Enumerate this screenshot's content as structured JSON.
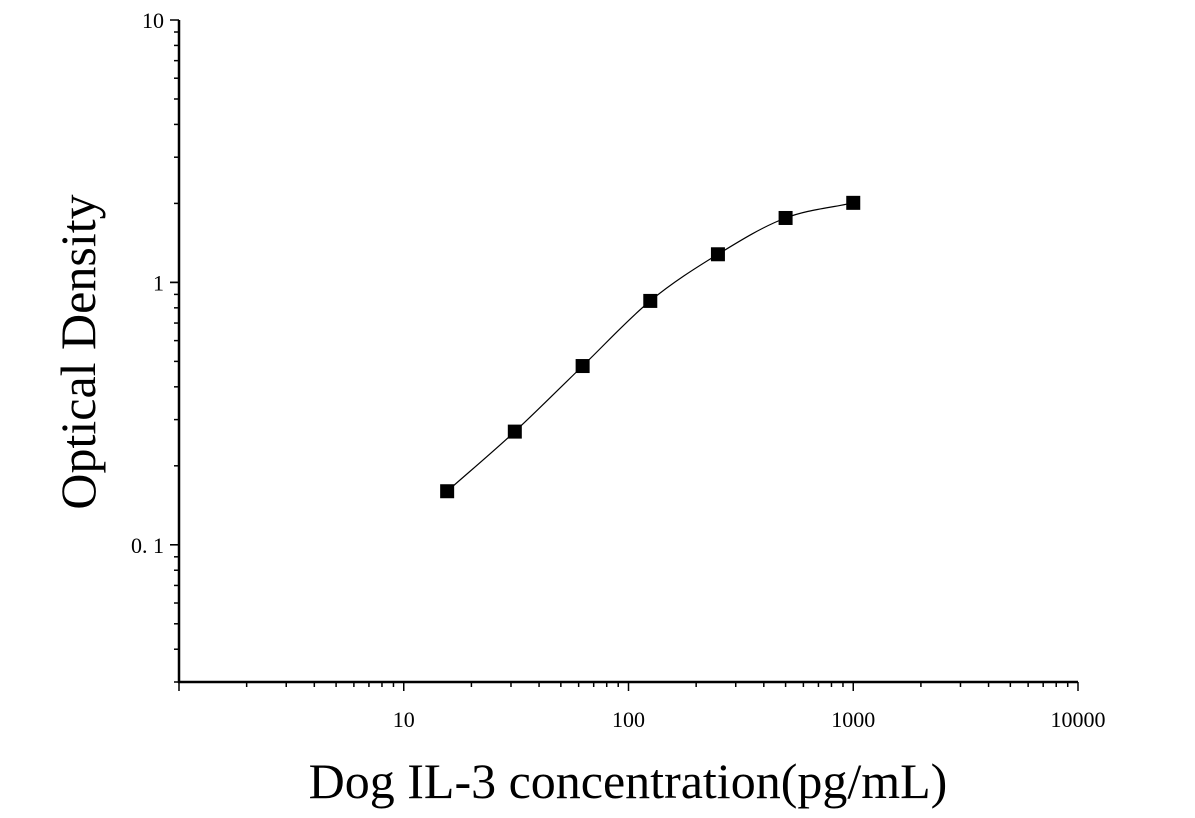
{
  "chart_data": {
    "type": "scatter",
    "title": "",
    "xlabel": "Dog IL-3 concentration(pg/mL)",
    "ylabel": "Optical Density",
    "x_scale": "log",
    "y_scale": "log",
    "xlim": [
      1,
      10000
    ],
    "ylim": [
      0.03,
      10
    ],
    "x_tick_labels": [
      {
        "value": 10,
        "label": "10"
      },
      {
        "value": 100,
        "label": "100"
      },
      {
        "value": 1000,
        "label": "1000"
      },
      {
        "value": 10000,
        "label": "10000"
      }
    ],
    "y_tick_labels": [
      {
        "value": 0.1,
        "label": "0. 1"
      },
      {
        "value": 1,
        "label": "1"
      },
      {
        "value": 10,
        "label": "10"
      }
    ],
    "grid": false,
    "legend": "none",
    "series": [
      {
        "x": [
          15.6,
          31.2,
          62.5,
          125,
          250,
          500,
          1000
        ],
        "y": [
          0.16,
          0.27,
          0.48,
          0.85,
          1.28,
          1.76,
          2.01
        ],
        "marker": "square",
        "fit_line": true
      }
    ],
    "colors": {
      "marker": "#000000",
      "line": "#000000",
      "axis": "#000000"
    }
  }
}
